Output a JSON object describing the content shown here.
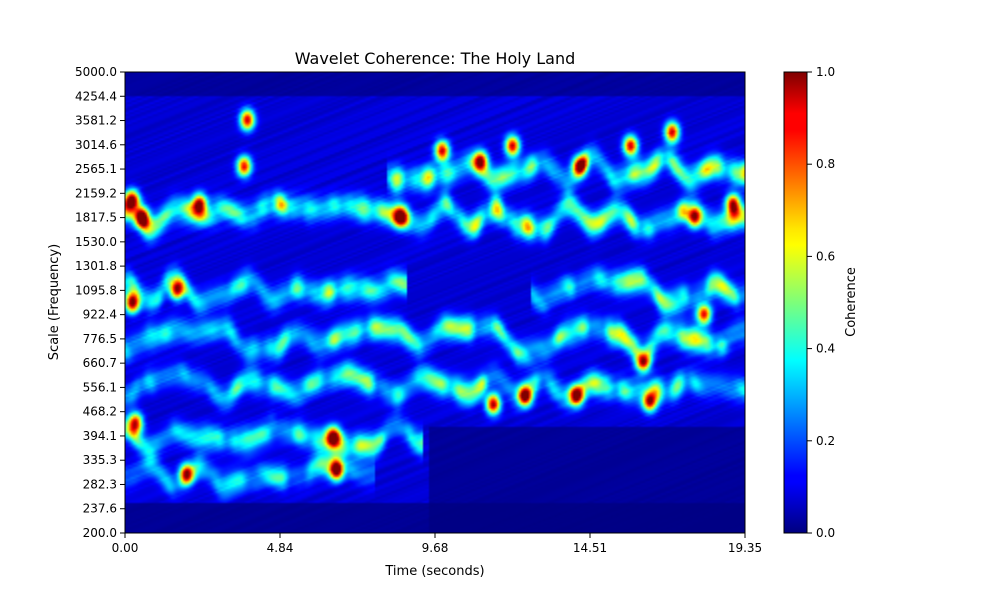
{
  "chart_data": {
    "type": "heatmap",
    "title": "Wavelet Coherence: The Holy Land",
    "xlabel": "Time (seconds)",
    "ylabel": "Scale (Frequency)",
    "xlim": [
      0.0,
      19.35
    ],
    "ylim": [
      200.0,
      5000.0
    ],
    "y_scale": "log",
    "x_ticks": [
      "0.00",
      "4.84",
      "9.68",
      "14.51",
      "19.35"
    ],
    "y_ticks": [
      "200.0",
      "237.6",
      "282.3",
      "335.3",
      "394.1",
      "468.2",
      "556.1",
      "660.7",
      "776.5",
      "922.4",
      "1095.8",
      "1301.8",
      "1530.0",
      "1817.5",
      "2159.2",
      "2565.1",
      "3014.6",
      "3581.2",
      "4254.4",
      "5000.0"
    ],
    "colormap": "jet",
    "colorbar": {
      "label": "Coherence",
      "range": [
        0.0,
        1.0
      ],
      "ticks": [
        "0.0",
        "0.2",
        "0.4",
        "0.6",
        "0.8",
        "1.0"
      ]
    },
    "bands": [
      {
        "scale": 1817.5,
        "strength": 0.62,
        "t_start": 0.0,
        "t_end": 19.35
      },
      {
        "scale": 2565.1,
        "strength": 0.55,
        "t_start": 8.5,
        "t_end": 19.35
      },
      {
        "scale": 1095.8,
        "strength": 0.55,
        "t_start": 0.0,
        "t_end": 8.5
      },
      {
        "scale": 1095.8,
        "strength": 0.45,
        "t_start": 13.0,
        "t_end": 19.35
      },
      {
        "scale": 776.5,
        "strength": 0.5,
        "t_start": 0.0,
        "t_end": 19.35
      },
      {
        "scale": 556.1,
        "strength": 0.45,
        "t_start": 0.0,
        "t_end": 19.35
      },
      {
        "scale": 394.1,
        "strength": 0.45,
        "t_start": 0.0,
        "t_end": 9.0
      },
      {
        "scale": 300.0,
        "strength": 0.35,
        "t_start": 0.0,
        "t_end": 7.5
      }
    ],
    "hotspots": [
      {
        "t": 0.2,
        "scale": 2050.0,
        "value": 0.95
      },
      {
        "t": 0.2,
        "scale": 1000.0,
        "value": 0.95
      },
      {
        "t": 0.5,
        "scale": 1817.5,
        "value": 0.9
      },
      {
        "t": 0.3,
        "scale": 430.0,
        "value": 0.8
      },
      {
        "t": 1.6,
        "scale": 1095.8,
        "value": 0.85
      },
      {
        "t": 1.9,
        "scale": 300.0,
        "value": 0.85
      },
      {
        "t": 2.3,
        "scale": 2000.0,
        "value": 0.8
      },
      {
        "t": 3.8,
        "scale": 3600.0,
        "value": 0.85
      },
      {
        "t": 3.7,
        "scale": 2600.0,
        "value": 0.8
      },
      {
        "t": 6.6,
        "scale": 310.0,
        "value": 0.95
      },
      {
        "t": 6.5,
        "scale": 390.0,
        "value": 0.85
      },
      {
        "t": 8.6,
        "scale": 1817.5,
        "value": 0.85
      },
      {
        "t": 9.9,
        "scale": 2900.0,
        "value": 0.85
      },
      {
        "t": 11.1,
        "scale": 2700.0,
        "value": 0.85
      },
      {
        "t": 11.5,
        "scale": 490.0,
        "value": 0.9
      },
      {
        "t": 12.1,
        "scale": 3000.0,
        "value": 0.85
      },
      {
        "t": 12.5,
        "scale": 520.0,
        "value": 0.95
      },
      {
        "t": 14.1,
        "scale": 520.0,
        "value": 0.9
      },
      {
        "t": 14.2,
        "scale": 2600.0,
        "value": 0.85
      },
      {
        "t": 15.8,
        "scale": 3000.0,
        "value": 0.85
      },
      {
        "t": 16.2,
        "scale": 660.7,
        "value": 0.85
      },
      {
        "t": 16.4,
        "scale": 500.0,
        "value": 0.85
      },
      {
        "t": 17.1,
        "scale": 3300.0,
        "value": 0.85
      },
      {
        "t": 17.8,
        "scale": 1817.5,
        "value": 0.8
      },
      {
        "t": 18.1,
        "scale": 920.0,
        "value": 0.8
      },
      {
        "t": 19.0,
        "scale": 2000.0,
        "value": 0.8
      }
    ]
  }
}
